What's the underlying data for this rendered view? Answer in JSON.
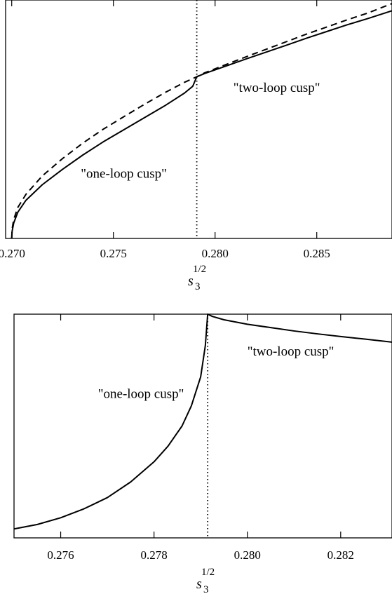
{
  "chart_data": [
    {
      "type": "line",
      "title": "",
      "xlabel": "s",
      "xlabel_sub": "3",
      "xlabel_sup": "1/2",
      "ylabel": "",
      "xlim": [
        0.2697,
        0.2887
      ],
      "ylim": [
        0,
        1
      ],
      "x_ticks": [
        0.27,
        0.275,
        0.28,
        0.285
      ],
      "x_tick_labels": [
        "0.270",
        "0.275",
        "0.280",
        "0.285"
      ],
      "vline": 0.2791,
      "annotations": [
        {
          "text": "\"one-loop cusp\"",
          "x": 0.2734,
          "y": 0.255
        },
        {
          "text": "\"two-loop cusp\"",
          "x": 0.2809,
          "y": 0.615
        }
      ],
      "series": [
        {
          "style": "solid",
          "x": [
            0.27,
            0.27002,
            0.2701,
            0.2703,
            0.2707,
            0.2715,
            0.2725,
            0.2735,
            0.2745,
            0.2755,
            0.2765,
            0.2775,
            0.2785,
            0.2789,
            0.2791,
            0.2795,
            0.2805,
            0.2815,
            0.2825,
            0.2835,
            0.2845,
            0.2855,
            0.2865,
            0.2875,
            0.2887
          ],
          "y": [
            0.0,
            0.03,
            0.065,
            0.11,
            0.16,
            0.225,
            0.29,
            0.35,
            0.405,
            0.455,
            0.505,
            0.555,
            0.61,
            0.638,
            0.678,
            0.692,
            0.722,
            0.752,
            0.781,
            0.81,
            0.84,
            0.868,
            0.896,
            0.922,
            0.955
          ]
        },
        {
          "style": "dashed",
          "x": [
            0.27,
            0.27002,
            0.2701,
            0.2703,
            0.2707,
            0.2715,
            0.2725,
            0.2735,
            0.2745,
            0.2755,
            0.2765,
            0.2775,
            0.2785,
            0.2791,
            0.2795,
            0.2805,
            0.2815,
            0.2825,
            0.2835,
            0.2845,
            0.2855,
            0.2865,
            0.2875,
            0.2887
          ],
          "y": [
            0.0,
            0.04,
            0.08,
            0.13,
            0.185,
            0.262,
            0.335,
            0.4,
            0.458,
            0.51,
            0.561,
            0.61,
            0.655,
            0.678,
            0.695,
            0.728,
            0.761,
            0.793,
            0.825,
            0.857,
            0.887,
            0.917,
            0.945,
            0.985
          ]
        }
      ]
    },
    {
      "type": "line",
      "title": "",
      "xlabel": "s",
      "xlabel_sub": "3",
      "xlabel_sup": "1/2",
      "ylabel": "",
      "xlim": [
        0.275,
        0.2831
      ],
      "ylim": [
        0,
        1
      ],
      "x_ticks": [
        0.276,
        0.278,
        0.28,
        0.282
      ],
      "x_tick_labels": [
        "0.276",
        "0.278",
        "0.280",
        "0.282"
      ],
      "vline": 0.27915,
      "annotations": [
        {
          "text": "\"one-loop cusp\"",
          "x": 0.2768,
          "y": 0.625
        },
        {
          "text": "\"two-loop cusp\"",
          "x": 0.28,
          "y": 0.815
        }
      ],
      "series": [
        {
          "style": "solid",
          "x": [
            0.275,
            0.2755,
            0.276,
            0.2765,
            0.277,
            0.2775,
            0.278,
            0.2783,
            0.2786,
            0.2788,
            0.279,
            0.2791,
            0.27915,
            0.27925,
            0.2795,
            0.28,
            0.2805,
            0.281,
            0.2815,
            0.282,
            0.2825,
            0.2831
          ],
          "y": [
            0.04,
            0.06,
            0.09,
            0.13,
            0.18,
            0.25,
            0.34,
            0.41,
            0.5,
            0.59,
            0.72,
            0.86,
            1.0,
            0.99,
            0.975,
            0.955,
            0.94,
            0.925,
            0.912,
            0.9,
            0.889,
            0.875
          ]
        }
      ]
    }
  ]
}
